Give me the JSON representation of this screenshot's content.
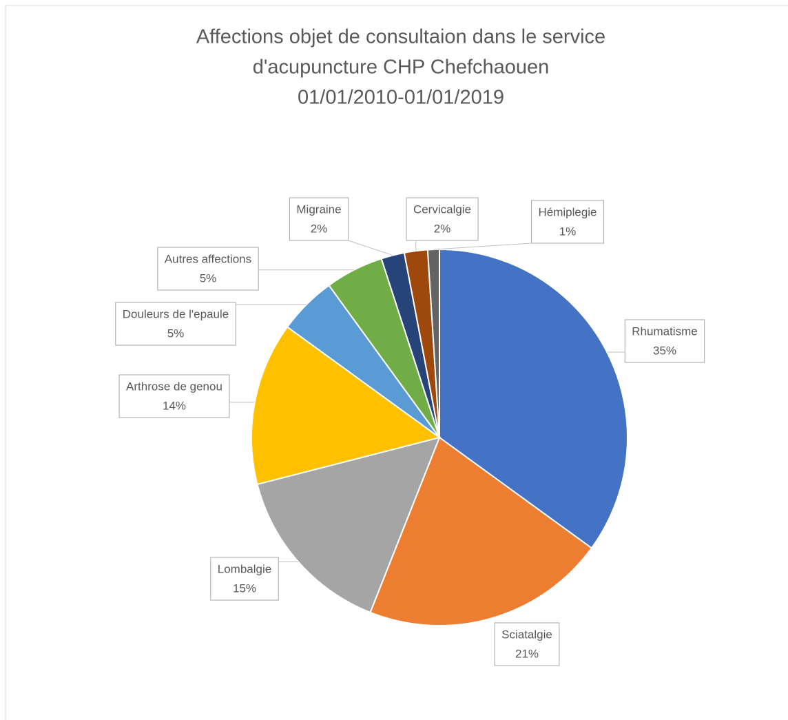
{
  "chart_data": {
    "type": "pie",
    "title": [
      "Affections objet de consultaion dans le service",
      "d'acupuncture  CHP Chefchaouen",
      "01/01/2010-01/01/2019"
    ],
    "categories": [
      "Rhumatisme",
      "Sciatalgie",
      "Lombalgie",
      "Arthrose de genou",
      "Douleurs de l'epaule",
      "Autres affections",
      "Migraine",
      "Cervicalgie",
      "Hémiplegie"
    ],
    "values": [
      35,
      21,
      15,
      14,
      5,
      5,
      2,
      2,
      1
    ],
    "value_labels": [
      "35%",
      "21%",
      "15%",
      "14%",
      "5%",
      "5%",
      "2%",
      "2%",
      "1%"
    ],
    "colors": [
      "#4472c4",
      "#ed7d31",
      "#a5a5a5",
      "#ffc000",
      "#5b9bd5",
      "#70ad47",
      "#264478",
      "#9e480e",
      "#636363"
    ]
  }
}
